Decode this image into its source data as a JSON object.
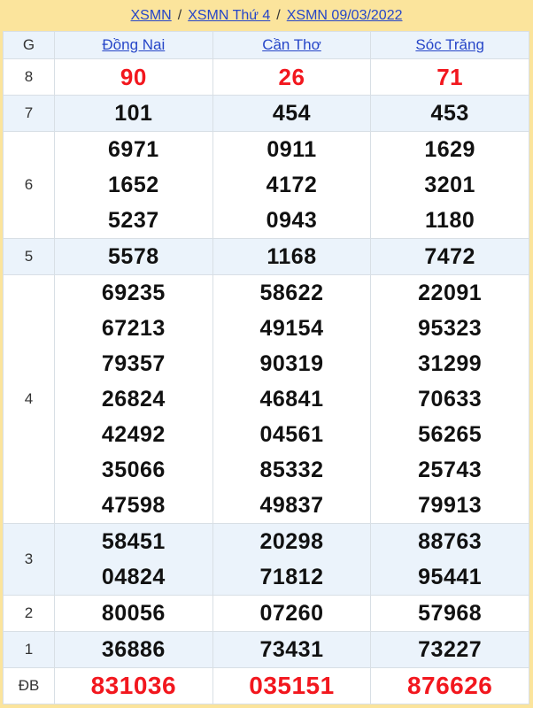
{
  "breadcrumb": {
    "separator": "/",
    "items": [
      {
        "label": "XSMN"
      },
      {
        "label": "XSMN Thứ 4"
      },
      {
        "label": "XSMN 09/03/2022"
      }
    ]
  },
  "table": {
    "corner_label": "G",
    "columns": [
      {
        "label": "Đồng Nai"
      },
      {
        "label": "Cần Thơ"
      },
      {
        "label": "Sóc Trăng"
      }
    ],
    "rows": [
      {
        "label": "8",
        "emphasis": true,
        "cells": [
          [
            "90"
          ],
          [
            "26"
          ],
          [
            "71"
          ]
        ]
      },
      {
        "label": "7",
        "cells": [
          [
            "101"
          ],
          [
            "454"
          ],
          [
            "453"
          ]
        ]
      },
      {
        "label": "6",
        "cells": [
          [
            "6971",
            "1652",
            "5237"
          ],
          [
            "0911",
            "4172",
            "0943"
          ],
          [
            "1629",
            "3201",
            "1180"
          ]
        ]
      },
      {
        "label": "5",
        "cells": [
          [
            "5578"
          ],
          [
            "1168"
          ],
          [
            "7472"
          ]
        ]
      },
      {
        "label": "4",
        "cells": [
          [
            "69235",
            "67213",
            "79357",
            "26824",
            "42492",
            "35066",
            "47598"
          ],
          [
            "58622",
            "49154",
            "90319",
            "46841",
            "04561",
            "85332",
            "49837"
          ],
          [
            "22091",
            "95323",
            "31299",
            "70633",
            "56265",
            "25743",
            "79913"
          ]
        ]
      },
      {
        "label": "3",
        "cells": [
          [
            "58451",
            "04824"
          ],
          [
            "20298",
            "71812"
          ],
          [
            "88763",
            "95441"
          ]
        ]
      },
      {
        "label": "2",
        "cells": [
          [
            "80056"
          ],
          [
            "07260"
          ],
          [
            "57968"
          ]
        ]
      },
      {
        "label": "1",
        "cells": [
          [
            "36886"
          ],
          [
            "73431"
          ],
          [
            "73227"
          ]
        ]
      },
      {
        "label": "ĐB",
        "emphasis": true,
        "cells": [
          [
            "831036"
          ],
          [
            "035151"
          ],
          [
            "876626"
          ]
        ]
      }
    ]
  },
  "colors": {
    "frame_yellow": "#fbe49c",
    "row_blue": "#ebf3fb",
    "link_blue": "#2646c8",
    "number_red": "#f2171e",
    "border_gray": "#d8dfe5"
  }
}
